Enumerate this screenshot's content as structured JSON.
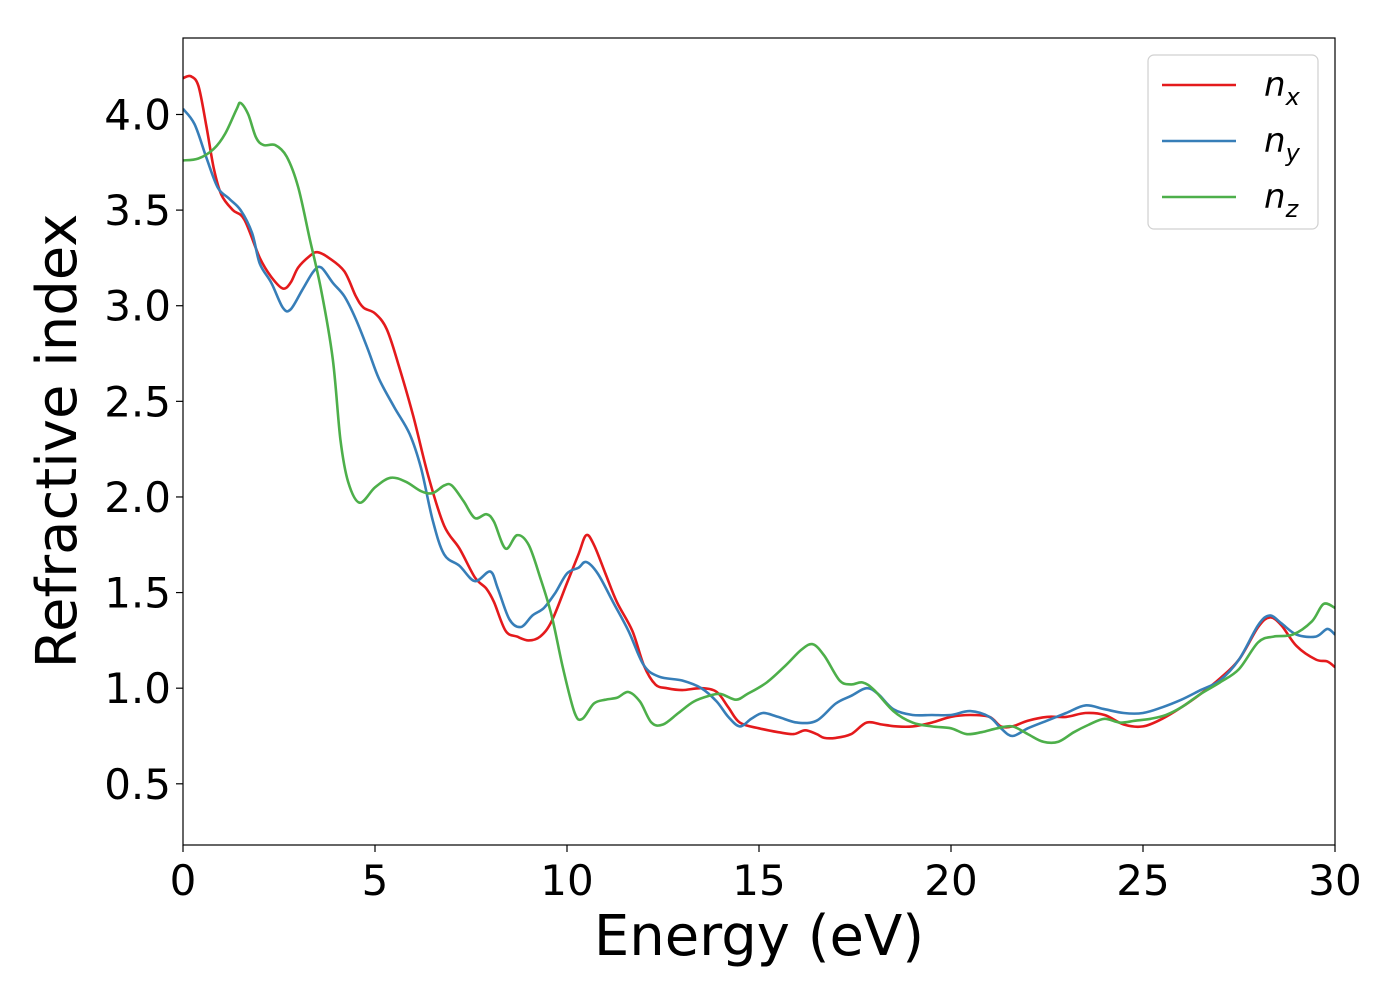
{
  "chart_data": {
    "type": "line",
    "title": "",
    "xlabel": "Energy (eV)",
    "ylabel": "Refractive index",
    "xlim": [
      0,
      30
    ],
    "ylim": [
      0.18,
      4.4
    ],
    "xticks": [
      0,
      5,
      10,
      15,
      20,
      25,
      30
    ],
    "xtick_labels": [
      "0",
      "5",
      "10",
      "15",
      "20",
      "25",
      "30"
    ],
    "yticks": [
      0.5,
      1.0,
      1.5,
      2.0,
      2.5,
      3.0,
      3.5,
      4.0
    ],
    "ytick_labels": [
      "0.5",
      "1.0",
      "1.5",
      "2.0",
      "2.5",
      "3.0",
      "3.5",
      "4.0"
    ],
    "grid": false,
    "legend_position": "top-right",
    "series": [
      {
        "name": "n",
        "subscript": "x",
        "color": "#e41a1c",
        "points": [
          [
            0,
            4.19
          ],
          [
            0.2,
            4.2
          ],
          [
            0.4,
            4.15
          ],
          [
            0.6,
            3.95
          ],
          [
            0.8,
            3.72
          ],
          [
            1.0,
            3.58
          ],
          [
            1.3,
            3.5
          ],
          [
            1.6,
            3.45
          ],
          [
            2.0,
            3.25
          ],
          [
            2.3,
            3.15
          ],
          [
            2.6,
            3.09
          ],
          [
            2.8,
            3.12
          ],
          [
            3.0,
            3.2
          ],
          [
            3.3,
            3.26
          ],
          [
            3.5,
            3.28
          ],
          [
            3.8,
            3.25
          ],
          [
            4.2,
            3.18
          ],
          [
            4.5,
            3.05
          ],
          [
            4.7,
            2.99
          ],
          [
            5.0,
            2.96
          ],
          [
            5.3,
            2.88
          ],
          [
            5.6,
            2.7
          ],
          [
            6.0,
            2.42
          ],
          [
            6.4,
            2.1
          ],
          [
            6.8,
            1.85
          ],
          [
            7.2,
            1.73
          ],
          [
            7.6,
            1.58
          ],
          [
            7.9,
            1.52
          ],
          [
            8.1,
            1.45
          ],
          [
            8.4,
            1.3
          ],
          [
            8.7,
            1.27
          ],
          [
            9.0,
            1.25
          ],
          [
            9.3,
            1.27
          ],
          [
            9.6,
            1.35
          ],
          [
            10.0,
            1.55
          ],
          [
            10.3,
            1.7
          ],
          [
            10.5,
            1.8
          ],
          [
            10.7,
            1.75
          ],
          [
            11.0,
            1.6
          ],
          [
            11.3,
            1.45
          ],
          [
            11.7,
            1.3
          ],
          [
            12.0,
            1.12
          ],
          [
            12.3,
            1.02
          ],
          [
            12.6,
            1.0
          ],
          [
            13.0,
            0.99
          ],
          [
            13.5,
            1.0
          ],
          [
            13.9,
            0.98
          ],
          [
            14.2,
            0.9
          ],
          [
            14.5,
            0.82
          ],
          [
            15.0,
            0.79
          ],
          [
            15.5,
            0.77
          ],
          [
            15.9,
            0.76
          ],
          [
            16.2,
            0.78
          ],
          [
            16.5,
            0.76
          ],
          [
            16.7,
            0.74
          ],
          [
            17.0,
            0.74
          ],
          [
            17.4,
            0.76
          ],
          [
            17.8,
            0.82
          ],
          [
            18.2,
            0.81
          ],
          [
            18.6,
            0.8
          ],
          [
            19.0,
            0.8
          ],
          [
            19.5,
            0.82
          ],
          [
            20.0,
            0.85
          ],
          [
            20.5,
            0.86
          ],
          [
            21.0,
            0.85
          ],
          [
            21.3,
            0.8
          ],
          [
            21.6,
            0.8
          ],
          [
            22.0,
            0.83
          ],
          [
            22.5,
            0.85
          ],
          [
            23.0,
            0.85
          ],
          [
            23.5,
            0.87
          ],
          [
            24.0,
            0.86
          ],
          [
            24.5,
            0.81
          ],
          [
            25.0,
            0.8
          ],
          [
            25.5,
            0.84
          ],
          [
            26.0,
            0.9
          ],
          [
            26.5,
            0.97
          ],
          [
            27.0,
            1.05
          ],
          [
            27.5,
            1.15
          ],
          [
            28.0,
            1.32
          ],
          [
            28.3,
            1.37
          ],
          [
            28.6,
            1.33
          ],
          [
            29.0,
            1.22
          ],
          [
            29.5,
            1.15
          ],
          [
            29.8,
            1.14
          ],
          [
            30.0,
            1.11
          ]
        ]
      },
      {
        "name": "n",
        "subscript": "y",
        "color": "#377eb8",
        "points": [
          [
            0,
            4.03
          ],
          [
            0.3,
            3.95
          ],
          [
            0.6,
            3.78
          ],
          [
            0.9,
            3.62
          ],
          [
            1.2,
            3.56
          ],
          [
            1.5,
            3.5
          ],
          [
            1.8,
            3.38
          ],
          [
            2.0,
            3.22
          ],
          [
            2.3,
            3.12
          ],
          [
            2.6,
            2.99
          ],
          [
            2.8,
            2.98
          ],
          [
            3.1,
            3.08
          ],
          [
            3.4,
            3.18
          ],
          [
            3.6,
            3.2
          ],
          [
            3.9,
            3.12
          ],
          [
            4.2,
            3.05
          ],
          [
            4.5,
            2.93
          ],
          [
            4.8,
            2.78
          ],
          [
            5.1,
            2.62
          ],
          [
            5.5,
            2.47
          ],
          [
            5.9,
            2.33
          ],
          [
            6.2,
            2.15
          ],
          [
            6.5,
            1.88
          ],
          [
            6.8,
            1.7
          ],
          [
            7.2,
            1.64
          ],
          [
            7.6,
            1.56
          ],
          [
            8.0,
            1.61
          ],
          [
            8.2,
            1.52
          ],
          [
            8.5,
            1.36
          ],
          [
            8.8,
            1.32
          ],
          [
            9.1,
            1.38
          ],
          [
            9.4,
            1.42
          ],
          [
            9.7,
            1.5
          ],
          [
            10.0,
            1.6
          ],
          [
            10.3,
            1.63
          ],
          [
            10.5,
            1.66
          ],
          [
            10.8,
            1.6
          ],
          [
            11.2,
            1.45
          ],
          [
            11.6,
            1.3
          ],
          [
            12.0,
            1.12
          ],
          [
            12.4,
            1.06
          ],
          [
            13.0,
            1.04
          ],
          [
            13.5,
            1.0
          ],
          [
            13.9,
            0.93
          ],
          [
            14.2,
            0.85
          ],
          [
            14.5,
            0.8
          ],
          [
            14.8,
            0.84
          ],
          [
            15.1,
            0.87
          ],
          [
            15.5,
            0.85
          ],
          [
            16.0,
            0.82
          ],
          [
            16.5,
            0.83
          ],
          [
            17.0,
            0.92
          ],
          [
            17.4,
            0.96
          ],
          [
            17.8,
            1.0
          ],
          [
            18.1,
            0.97
          ],
          [
            18.5,
            0.89
          ],
          [
            19.0,
            0.86
          ],
          [
            19.5,
            0.86
          ],
          [
            20.0,
            0.86
          ],
          [
            20.5,
            0.88
          ],
          [
            21.0,
            0.85
          ],
          [
            21.3,
            0.79
          ],
          [
            21.6,
            0.75
          ],
          [
            22.0,
            0.79
          ],
          [
            22.5,
            0.83
          ],
          [
            23.0,
            0.87
          ],
          [
            23.5,
            0.91
          ],
          [
            24.0,
            0.89
          ],
          [
            24.5,
            0.87
          ],
          [
            25.0,
            0.87
          ],
          [
            25.5,
            0.9
          ],
          [
            26.0,
            0.94
          ],
          [
            26.5,
            0.99
          ],
          [
            27.0,
            1.04
          ],
          [
            27.5,
            1.15
          ],
          [
            28.0,
            1.33
          ],
          [
            28.3,
            1.38
          ],
          [
            28.6,
            1.34
          ],
          [
            29.0,
            1.28
          ],
          [
            29.5,
            1.27
          ],
          [
            29.8,
            1.31
          ],
          [
            30.0,
            1.28
          ]
        ]
      },
      {
        "name": "n",
        "subscript": "z",
        "color": "#4daf4a",
        "points": [
          [
            0,
            3.76
          ],
          [
            0.4,
            3.77
          ],
          [
            0.8,
            3.82
          ],
          [
            1.1,
            3.9
          ],
          [
            1.4,
            4.03
          ],
          [
            1.5,
            4.06
          ],
          [
            1.7,
            4.0
          ],
          [
            1.9,
            3.88
          ],
          [
            2.1,
            3.84
          ],
          [
            2.4,
            3.84
          ],
          [
            2.7,
            3.78
          ],
          [
            3.0,
            3.62
          ],
          [
            3.3,
            3.35
          ],
          [
            3.6,
            3.08
          ],
          [
            3.9,
            2.72
          ],
          [
            4.1,
            2.3
          ],
          [
            4.3,
            2.08
          ],
          [
            4.6,
            1.97
          ],
          [
            5.0,
            2.05
          ],
          [
            5.4,
            2.1
          ],
          [
            5.8,
            2.08
          ],
          [
            6.2,
            2.03
          ],
          [
            6.5,
            2.02
          ],
          [
            6.8,
            2.06
          ],
          [
            7.0,
            2.06
          ],
          [
            7.3,
            1.98
          ],
          [
            7.6,
            1.89
          ],
          [
            7.9,
            1.91
          ],
          [
            8.1,
            1.87
          ],
          [
            8.4,
            1.73
          ],
          [
            8.7,
            1.8
          ],
          [
            9.0,
            1.75
          ],
          [
            9.3,
            1.58
          ],
          [
            9.6,
            1.38
          ],
          [
            9.9,
            1.1
          ],
          [
            10.2,
            0.87
          ],
          [
            10.4,
            0.84
          ],
          [
            10.7,
            0.92
          ],
          [
            11.0,
            0.94
          ],
          [
            11.3,
            0.95
          ],
          [
            11.6,
            0.98
          ],
          [
            11.9,
            0.93
          ],
          [
            12.2,
            0.82
          ],
          [
            12.5,
            0.81
          ],
          [
            12.9,
            0.87
          ],
          [
            13.3,
            0.93
          ],
          [
            13.7,
            0.96
          ],
          [
            14.0,
            0.97
          ],
          [
            14.4,
            0.94
          ],
          [
            14.7,
            0.97
          ],
          [
            15.2,
            1.03
          ],
          [
            15.7,
            1.12
          ],
          [
            16.1,
            1.2
          ],
          [
            16.4,
            1.23
          ],
          [
            16.7,
            1.17
          ],
          [
            17.1,
            1.04
          ],
          [
            17.4,
            1.02
          ],
          [
            17.7,
            1.03
          ],
          [
            18.0,
            0.99
          ],
          [
            18.5,
            0.88
          ],
          [
            19.0,
            0.82
          ],
          [
            19.5,
            0.8
          ],
          [
            20.0,
            0.79
          ],
          [
            20.4,
            0.76
          ],
          [
            20.8,
            0.77
          ],
          [
            21.2,
            0.79
          ],
          [
            21.6,
            0.8
          ],
          [
            22.0,
            0.76
          ],
          [
            22.4,
            0.72
          ],
          [
            22.8,
            0.72
          ],
          [
            23.2,
            0.77
          ],
          [
            23.6,
            0.81
          ],
          [
            24.0,
            0.84
          ],
          [
            24.4,
            0.82
          ],
          [
            24.8,
            0.83
          ],
          [
            25.2,
            0.84
          ],
          [
            25.6,
            0.86
          ],
          [
            26.0,
            0.9
          ],
          [
            26.5,
            0.97
          ],
          [
            27.0,
            1.03
          ],
          [
            27.5,
            1.1
          ],
          [
            28.0,
            1.24
          ],
          [
            28.4,
            1.27
          ],
          [
            28.9,
            1.28
          ],
          [
            29.4,
            1.35
          ],
          [
            29.7,
            1.44
          ],
          [
            30.0,
            1.42
          ]
        ]
      }
    ]
  }
}
